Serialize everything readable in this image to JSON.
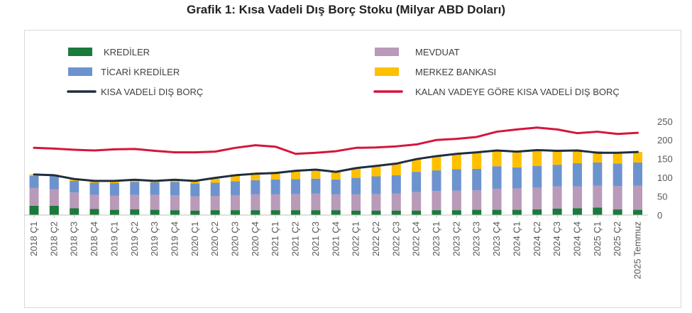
{
  "title": "Grafik 1: Kısa Vadeli Dış Borç Stoku (Milyar ABD Doları)",
  "colors": {
    "krediler": "#1a7a3c",
    "mevduat": "#b99ab8",
    "ticari": "#6d93cf",
    "merkez": "#ffc000",
    "kvdb": "#1f2d3d",
    "kalan": "#d4163c"
  },
  "chart_data": {
    "type": "bar",
    "stacked": true,
    "categories": [
      "2018 Ç1",
      "2018 Ç2",
      "2018 Ç3",
      "2018 Ç4",
      "2019 Ç1",
      "2019 Ç2",
      "2019 Ç3",
      "2019 Ç4",
      "2020 Ç1",
      "2020 Ç2",
      "2020 Ç3",
      "2020 Ç4",
      "2021 Ç1",
      "2021 Ç2",
      "2021 Ç3",
      "2021 Ç4",
      "2022 Ç1",
      "2022 Ç2",
      "2022 Ç3",
      "2022 Ç4",
      "2023 Ç1",
      "2023 Ç2",
      "2023 Ç3",
      "2023 Ç4",
      "2024 Ç1",
      "2024 Ç2",
      "2024 Ç3",
      "2024 Ç4",
      "2025 Ç1",
      "2025 Ç2",
      "2025 Temmuz"
    ],
    "ylim": [
      0,
      250
    ],
    "yticks": [
      0,
      50,
      100,
      150,
      200,
      250
    ],
    "legend": [
      "KREDİLER",
      "MEVDUAT",
      "TİCARİ KREDİLER",
      "MERKEZ BANKASI",
      "KISA VADELİ DIŞ BORÇ",
      "KALAN VADEYE GÖRE KISA VADELİ DIŞ BORÇ"
    ],
    "series": [
      {
        "name": "KREDİLER",
        "kind": "bar",
        "color_key": "krediler",
        "values": [
          25,
          25,
          18,
          16,
          14,
          15,
          14,
          13,
          12,
          13,
          13,
          13,
          13,
          13,
          13,
          13,
          12,
          12,
          12,
          12,
          13,
          13,
          14,
          14,
          14,
          15,
          17,
          18,
          20,
          15,
          14
        ]
      },
      {
        "name": "MEVDUAT",
        "kind": "bar",
        "color_key": "mevduat",
        "values": [
          47,
          44,
          42,
          38,
          38,
          39,
          40,
          40,
          38,
          38,
          40,
          42,
          42,
          43,
          44,
          42,
          43,
          44,
          45,
          49,
          51,
          52,
          52,
          56,
          57,
          58,
          59,
          58,
          58,
          62,
          64
        ]
      },
      {
        "name": "TİCARİ KREDİLER",
        "kind": "bar",
        "color_key": "ticari",
        "values": [
          32,
          35,
          31,
          32,
          33,
          34,
          33,
          35,
          34,
          35,
          37,
          38,
          40,
          40,
          40,
          40,
          44,
          47,
          49,
          54,
          55,
          57,
          57,
          60,
          56,
          58,
          58,
          62,
          62,
          60,
          62
        ]
      },
      {
        "name": "MERKEZ BANKASI",
        "kind": "bar",
        "color_key": "merkez",
        "values": [
          4,
          4,
          5,
          3,
          4,
          5,
          5,
          5,
          5,
          11,
          18,
          20,
          20,
          22,
          23,
          23,
          26,
          28,
          31,
          34,
          38,
          40,
          45,
          42,
          42,
          40,
          38,
          34,
          30,
          28,
          28
        ]
      },
      {
        "name": "KISA VADELİ DIŞ BORÇ",
        "kind": "line",
        "color_key": "kvdb",
        "values": [
          108,
          106,
          96,
          91,
          91,
          94,
          91,
          94,
          91,
          99,
          106,
          110,
          112,
          118,
          121,
          115,
          125,
          131,
          137,
          149,
          157,
          163,
          167,
          172,
          169,
          173,
          171,
          172,
          166,
          166,
          168
        ]
      },
      {
        "name": "KALAN VADEYE GÖRE KISA VADELİ DIŞ BORÇ",
        "kind": "line",
        "color_key": "kalan",
        "values": [
          179,
          177,
          174,
          172,
          175,
          176,
          171,
          167,
          167,
          169,
          179,
          186,
          182,
          163,
          166,
          170,
          179,
          180,
          183,
          188,
          200,
          203,
          208,
          222,
          228,
          233,
          228,
          218,
          222,
          216,
          219
        ]
      }
    ]
  }
}
